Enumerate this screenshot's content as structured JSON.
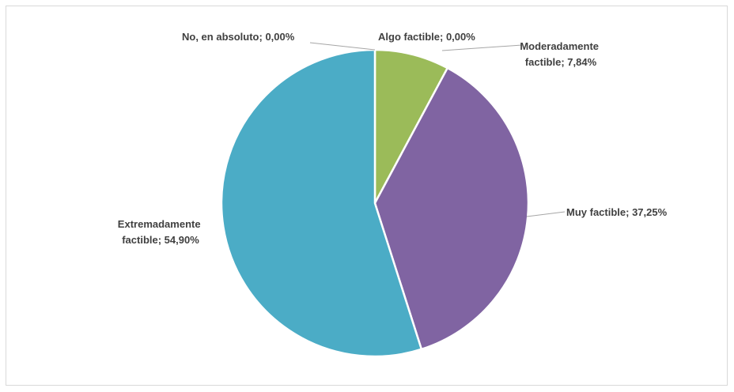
{
  "chart_data": {
    "type": "pie",
    "title": "",
    "slices": [
      {
        "label": "No, en absoluto",
        "value": 0.0,
        "display": "No, en absoluto; 0,00%",
        "color": "#4bacc6"
      },
      {
        "label": "Algo factible",
        "value": 0.0,
        "display": "Algo factible; 0,00%",
        "color": "#f79646"
      },
      {
        "label": "Moderadamente factible",
        "value": 7.84,
        "display": [
          "Moderadamente",
          "factible; 7,84%"
        ],
        "color": "#9bbb59"
      },
      {
        "label": "Muy factible",
        "value": 37.25,
        "display": "Muy factible; 37,25%",
        "color": "#8064a2"
      },
      {
        "label": "Extremadamente factible",
        "value": 54.9,
        "display": [
          "Extremadamente",
          "factible; 54,90%"
        ],
        "color": "#4bacc6"
      }
    ],
    "legend": "none",
    "slice_border_color": "#ffffff"
  }
}
